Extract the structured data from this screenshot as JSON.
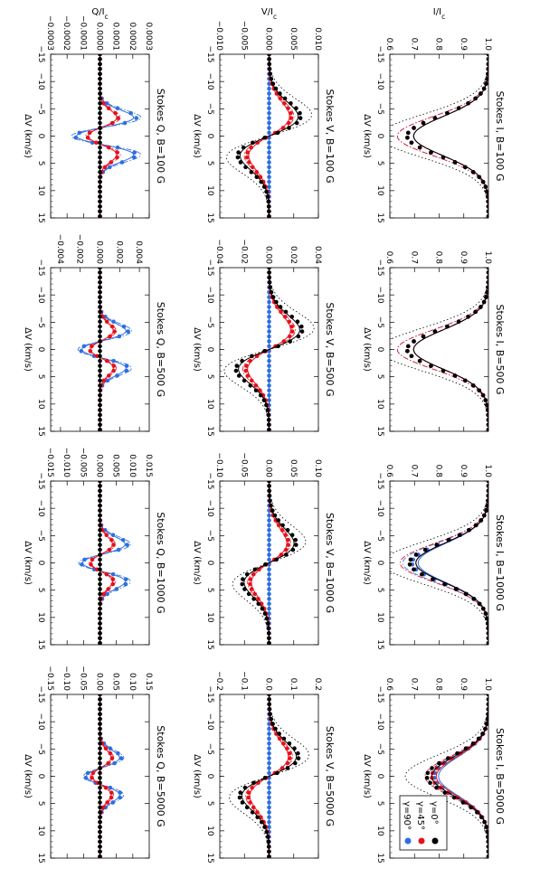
{
  "figure": {
    "colors": {
      "gamma0": "#000000",
      "gamma45": "#e8101a",
      "gamma90": "#2d6fe0"
    },
    "legend": [
      "γ=0°",
      "γ=45°",
      "γ=90°"
    ]
  },
  "chart_data": [
    {
      "type": "line",
      "title": "Stokes I, B=100 G",
      "xlabel": "ΔV (km/s)",
      "ylabel": "I/I_c",
      "xlim": [
        -15,
        15
      ],
      "ylim": [
        0.6,
        1.0
      ],
      "xticks": [
        "−15",
        "−10",
        "−5",
        "0",
        "5",
        "10",
        "15"
      ],
      "yticks": [
        "0.6",
        "0.7",
        "0.8",
        "0.9",
        "1.0"
      ],
      "profile": "absorption",
      "amp": {
        "gamma0": 0.33,
        "gamma45": 0.33,
        "gamma90": 0.33
      },
      "series": [
        {
          "name": "γ=0°",
          "color": "#000000"
        },
        {
          "name": "γ=45°",
          "color": "#e8101a"
        },
        {
          "name": "γ=90°",
          "color": "#2d6fe0"
        }
      ]
    },
    {
      "type": "line",
      "title": "Stokes I, B=500 G",
      "xlabel": "ΔV (km/s)",
      "ylabel": "",
      "xlim": [
        -15,
        15
      ],
      "ylim": [
        0.6,
        1.0
      ],
      "xticks": [
        "−15",
        "−10",
        "−5",
        "0",
        "5",
        "10",
        "15"
      ],
      "yticks": [
        "0.6",
        "0.7",
        "0.8",
        "0.9",
        "1.0"
      ],
      "profile": "absorption",
      "amp": {
        "gamma0": 0.33,
        "gamma45": 0.33,
        "gamma90": 0.33
      },
      "series": [
        {
          "name": "γ=0°",
          "color": "#000000"
        },
        {
          "name": "γ=45°",
          "color": "#e8101a"
        },
        {
          "name": "γ=90°",
          "color": "#2d6fe0"
        }
      ]
    },
    {
      "type": "line",
      "title": "Stokes I, B=1000 G",
      "xlabel": "ΔV (km/s)",
      "ylabel": "",
      "xlim": [
        -15,
        15
      ],
      "ylim": [
        0.6,
        1.0
      ],
      "xticks": [
        "−15",
        "−10",
        "−5",
        "0",
        "5",
        "10",
        "15"
      ],
      "yticks": [
        "0.6",
        "0.7",
        "0.8",
        "0.9",
        "1.0"
      ],
      "profile": "absorption",
      "amp": {
        "gamma0": 0.32,
        "gamma45": 0.32,
        "gamma90": 0.31
      },
      "series": [
        {
          "name": "γ=0°",
          "color": "#000000"
        },
        {
          "name": "γ=45°",
          "color": "#e8101a"
        },
        {
          "name": "γ=90°",
          "color": "#2d6fe0"
        }
      ]
    },
    {
      "type": "line",
      "title": "Stokes I, B=5000 G",
      "xlabel": "ΔV (km/s)",
      "ylabel": "",
      "xlim": [
        -15,
        15
      ],
      "ylim": [
        0.6,
        1.0
      ],
      "xticks": [
        "−15",
        "−10",
        "−5",
        "0",
        "5",
        "10",
        "15"
      ],
      "yticks": [
        "0.6",
        "0.7",
        "0.8",
        "0.9",
        "1.0"
      ],
      "profile": "absorption",
      "amp": {
        "gamma0": 0.25,
        "gamma45": 0.23,
        "gamma90": 0.22
      },
      "series": [
        {
          "name": "γ=0°",
          "color": "#000000"
        },
        {
          "name": "γ=45°",
          "color": "#e8101a"
        },
        {
          "name": "γ=90°",
          "color": "#2d6fe0"
        }
      ]
    },
    {
      "type": "line",
      "title": "Stokes V, B=100 G",
      "xlabel": "ΔV (km/s)",
      "ylabel": "V/I_c",
      "xlim": [
        -15,
        15
      ],
      "ylim": [
        -0.01,
        0.01
      ],
      "xticks": [
        "−15",
        "−10",
        "−5",
        "0",
        "5",
        "10",
        "15"
      ],
      "yticks": [
        "−0.010",
        "−0.005",
        "0.000",
        "0.005",
        "0.010"
      ],
      "profile": "antisym",
      "amp": {
        "gamma0": 0.0064,
        "gamma45": 0.0045,
        "gamma90": 0
      },
      "series": [
        {
          "name": "γ=0°",
          "color": "#000000"
        },
        {
          "name": "γ=45°",
          "color": "#e8101a"
        },
        {
          "name": "γ=90°",
          "color": "#2d6fe0"
        }
      ]
    },
    {
      "type": "line",
      "title": "Stokes V, B=500 G",
      "xlabel": "ΔV (km/s)",
      "ylabel": "",
      "xlim": [
        -15,
        15
      ],
      "ylim": [
        -0.04,
        0.04
      ],
      "xticks": [
        "−15",
        "−10",
        "−5",
        "0",
        "5",
        "10",
        "15"
      ],
      "yticks": [
        "−0.04",
        "−0.02",
        "0.00",
        "0.02",
        "0.04"
      ],
      "profile": "antisym",
      "amp": {
        "gamma0": 0.027,
        "gamma45": 0.019,
        "gamma90": 0
      },
      "series": [
        {
          "name": "γ=0°",
          "color": "#000000"
        },
        {
          "name": "γ=45°",
          "color": "#e8101a"
        },
        {
          "name": "γ=90°",
          "color": "#2d6fe0"
        }
      ]
    },
    {
      "type": "line",
      "title": "Stokes V, B=1000 G",
      "xlabel": "ΔV (km/s)",
      "ylabel": "",
      "xlim": [
        -15,
        15
      ],
      "ylim": [
        -0.1,
        0.1
      ],
      "xticks": [
        "−15",
        "−10",
        "−5",
        "0",
        "5",
        "10",
        "15"
      ],
      "yticks": [
        "−0.10",
        "−0.05",
        "0.00",
        "0.05",
        "0.10"
      ],
      "profile": "antisym",
      "amp": {
        "gamma0": 0.055,
        "gamma45": 0.039,
        "gamma90": 0
      },
      "series": [
        {
          "name": "γ=0°",
          "color": "#000000"
        },
        {
          "name": "γ=45°",
          "color": "#e8101a"
        },
        {
          "name": "γ=90°",
          "color": "#2d6fe0"
        }
      ]
    },
    {
      "type": "line",
      "title": "Stokes V, B=5000 G",
      "xlabel": "ΔV (km/s)",
      "ylabel": "",
      "xlim": [
        -15,
        15
      ],
      "ylim": [
        -0.2,
        0.2
      ],
      "xticks": [
        "−15",
        "−10",
        "−5",
        "0",
        "5",
        "10",
        "15"
      ],
      "yticks": [
        "−0.2",
        "−0.1",
        "0.0",
        "0.1",
        "0.2"
      ],
      "profile": "antisym",
      "amp": {
        "gamma0": 0.12,
        "gamma45": 0.085,
        "gamma90": 0
      },
      "series": [
        {
          "name": "γ=0°",
          "color": "#000000"
        },
        {
          "name": "γ=45°",
          "color": "#e8101a"
        },
        {
          "name": "γ=90°",
          "color": "#2d6fe0"
        }
      ]
    },
    {
      "type": "line",
      "title": "Stokes Q, B=100 G",
      "xlabel": "ΔV (km/s)",
      "ylabel": "Q/I_c",
      "xlim": [
        -15,
        15
      ],
      "ylim": [
        -0.0003,
        0.0003
      ],
      "xticks": [
        "−15",
        "−10",
        "−5",
        "0",
        "5",
        "10",
        "15"
      ],
      "yticks": [
        "−0.0003",
        "−0.0002",
        "−0.0001",
        "0.0000",
        "0.0001",
        "0.0002",
        "0.0003"
      ],
      "profile": "sym",
      "amp": {
        "gamma0": 0,
        "gamma45": 0.00012,
        "gamma90": 0.00024
      },
      "series": [
        {
          "name": "γ=0°",
          "color": "#000000"
        },
        {
          "name": "γ=45°",
          "color": "#e8101a"
        },
        {
          "name": "γ=90°",
          "color": "#2d6fe0"
        }
      ]
    },
    {
      "type": "line",
      "title": "Stokes Q, B=500 G",
      "xlabel": "ΔV (km/s)",
      "ylabel": "",
      "xlim": [
        -15,
        15
      ],
      "ylim": [
        -0.005,
        0.005
      ],
      "xticks": [
        "−15",
        "−10",
        "−5",
        "0",
        "5",
        "10",
        "15"
      ],
      "yticks": [
        "−0.004",
        "−0.002",
        "0.000",
        "0.002",
        "0.004"
      ],
      "profile": "sym",
      "amp": {
        "gamma0": 0,
        "gamma45": 0.0016,
        "gamma90": 0.0031
      },
      "series": [
        {
          "name": "γ=0°",
          "color": "#000000"
        },
        {
          "name": "γ=45°",
          "color": "#e8101a"
        },
        {
          "name": "γ=90°",
          "color": "#2d6fe0"
        }
      ]
    },
    {
      "type": "line",
      "title": "Stokes Q, B=1000 G",
      "xlabel": "ΔV (km/s)",
      "ylabel": "",
      "xlim": [
        -15,
        15
      ],
      "ylim": [
        -0.015,
        0.015
      ],
      "xticks": [
        "−15",
        "−10",
        "−5",
        "0",
        "5",
        "10",
        "15"
      ],
      "yticks": [
        "−0.015",
        "−0.010",
        "−0.005",
        "0.000",
        "0.005",
        "0.010",
        "0.015"
      ],
      "profile": "sym",
      "amp": {
        "gamma0": 0,
        "gamma45": 0.0045,
        "gamma90": 0.009
      },
      "series": [
        {
          "name": "γ=0°",
          "color": "#000000"
        },
        {
          "name": "γ=45°",
          "color": "#e8101a"
        },
        {
          "name": "γ=90°",
          "color": "#2d6fe0"
        }
      ]
    },
    {
      "type": "line",
      "title": "Stokes Q, B=5000 G",
      "xlabel": "ΔV (km/s)",
      "ylabel": "",
      "xlim": [
        -15,
        15
      ],
      "ylim": [
        -0.15,
        0.15
      ],
      "xticks": [
        "−15",
        "−10",
        "−5",
        "0",
        "5",
        "10",
        "15"
      ],
      "yticks": [
        "−0.15",
        "−0.10",
        "−0.05",
        "0.00",
        "0.05",
        "0.10",
        "0.15"
      ],
      "profile": "sym",
      "amp": {
        "gamma0": 0,
        "gamma45": 0.04,
        "gamma90": 0.07
      },
      "series": [
        {
          "name": "γ=0°",
          "color": "#000000"
        },
        {
          "name": "γ=45°",
          "color": "#e8101a"
        },
        {
          "name": "γ=90°",
          "color": "#2d6fe0"
        }
      ]
    }
  ]
}
